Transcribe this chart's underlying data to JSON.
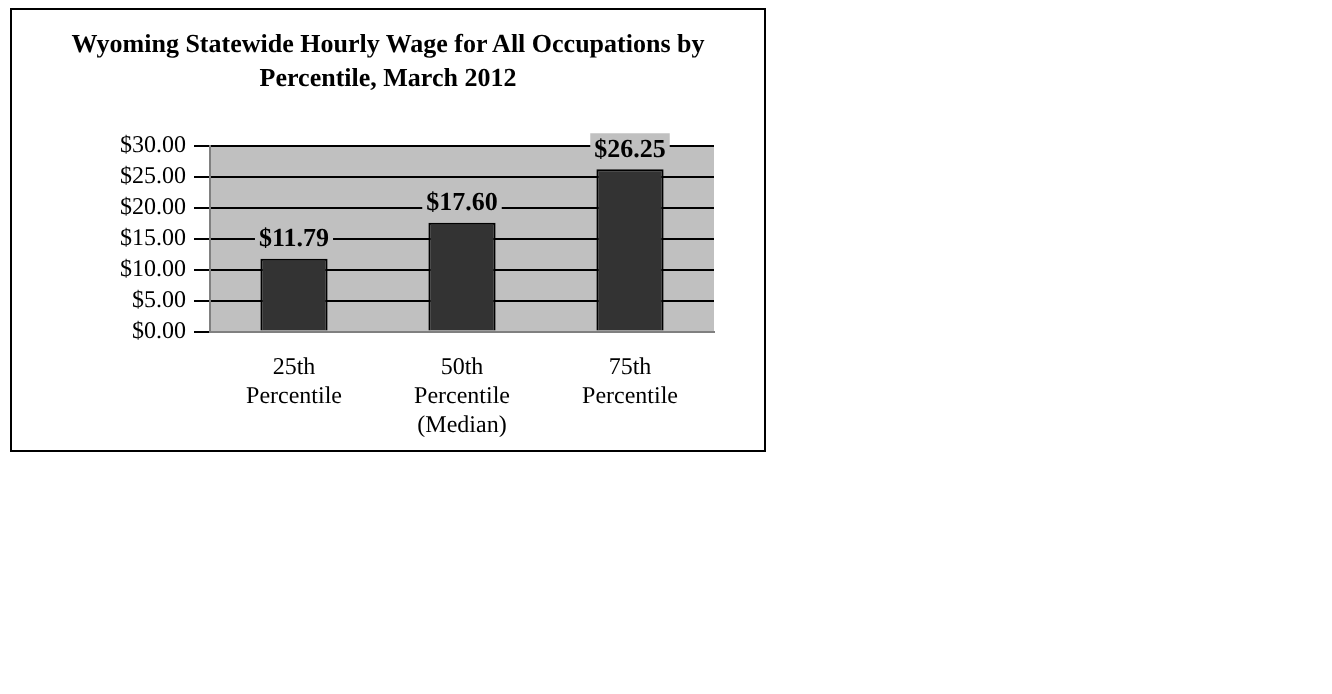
{
  "chart_data": {
    "type": "bar",
    "title": "Wyoming Statewide Hourly Wage for All Occupations by Percentile, March 2012",
    "categories": [
      "25th Percentile",
      "50th Percentile (Median)",
      "75th Percentile"
    ],
    "values": [
      11.79,
      17.6,
      26.25
    ],
    "color": "#333333",
    "value_labels": [
      "$11.79",
      "$17.60",
      "$26.25"
    ],
    "ylim": [
      0,
      30
    ],
    "yticks": [
      {
        "value": 0,
        "label": "$0.00"
      },
      {
        "value": 5,
        "label": "$5.00"
      },
      {
        "value": 10,
        "label": "$10.00"
      },
      {
        "value": 15,
        "label": "$15.00"
      },
      {
        "value": 20,
        "label": "$20.00"
      },
      {
        "value": 25,
        "label": "$25.00"
      },
      {
        "value": 30,
        "label": "$30.00"
      }
    ],
    "grid": "y",
    "legend": false
  }
}
